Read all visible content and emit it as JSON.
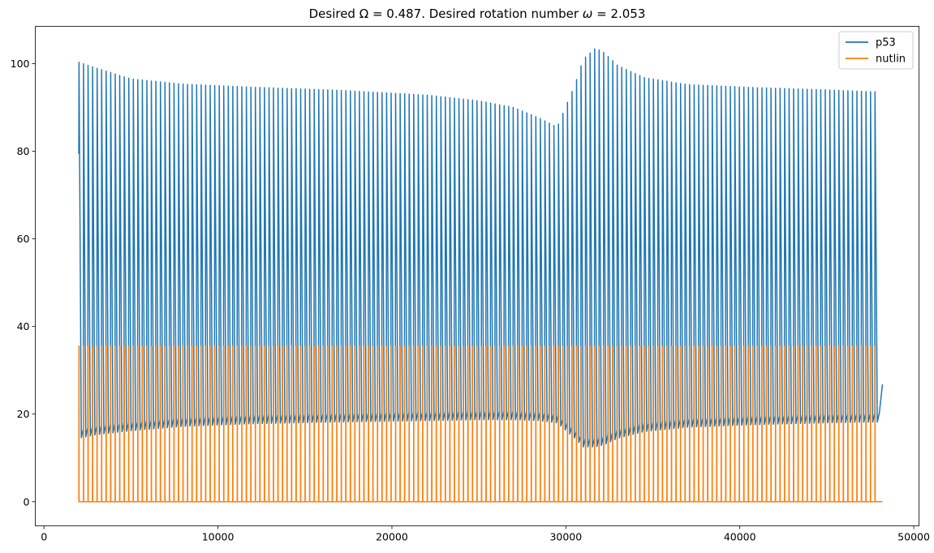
{
  "chart_data": {
    "type": "line",
    "title": "Desired Ω = 0.487. Desired rotation number ω = 2.053",
    "title_parts": {
      "prefix": "Desired Ω = 0.487. Desired rotation number ",
      "omega": "ω",
      "suffix": " = 2.053"
    },
    "xlabel": "",
    "ylabel": "",
    "xlim": [
      -500,
      50300
    ],
    "ylim": [
      -5.5,
      108.5
    ],
    "xticks": [
      0,
      10000,
      20000,
      30000,
      40000,
      50000
    ],
    "xtick_labels": [
      "0",
      "10000",
      "20000",
      "30000",
      "40000",
      "50000"
    ],
    "yticks": [
      0,
      20,
      40,
      60,
      80,
      100
    ],
    "ytick_labels": [
      "0",
      "20",
      "40",
      "60",
      "80",
      "100"
    ],
    "grid": false,
    "legend_position": "top-right",
    "x_range": [
      2000,
      48200
    ],
    "series": [
      {
        "name": "p53",
        "color": "#1f77b4",
        "oscillation": "periodic spikes",
        "period": 260,
        "start_value": 79.4,
        "end_value": 26.8,
        "peak_envelope": {
          "x": [
            2000,
            3000,
            5000,
            8000,
            12000,
            17000,
            22000,
            25000,
            27000,
            28500,
            29500,
            30500,
            31000,
            31700,
            32200,
            33000,
            34500,
            37000,
            41000,
            45000,
            48000
          ],
          "y": [
            100.3,
            99.0,
            96.5,
            95.3,
            94.6,
            93.9,
            92.8,
            91.5,
            90.0,
            87.5,
            85.5,
            95.0,
            101.0,
            103.5,
            102.5,
            99.5,
            96.8,
            95.2,
            94.5,
            94.0,
            93.5
          ]
        },
        "trough_envelope": {
          "x": [
            2000,
            3000,
            5000,
            8000,
            12000,
            17000,
            22000,
            25000,
            27000,
            28500,
            29500,
            30500,
            31000,
            31700,
            32200,
            33000,
            34500,
            37000,
            41000,
            45000,
            48000
          ],
          "y": [
            14.5,
            15.3,
            16.2,
            17.2,
            17.8,
            18.2,
            18.5,
            18.7,
            18.7,
            18.5,
            18.0,
            14.5,
            12.5,
            12.5,
            13.0,
            14.5,
            16.0,
            17.0,
            17.6,
            18.0,
            18.2
          ]
        }
      },
      {
        "name": "nutlin",
        "color": "#ff7f0e",
        "oscillation": "square pulses",
        "period": 260,
        "values": [
          0,
          35.5
        ]
      }
    ]
  }
}
